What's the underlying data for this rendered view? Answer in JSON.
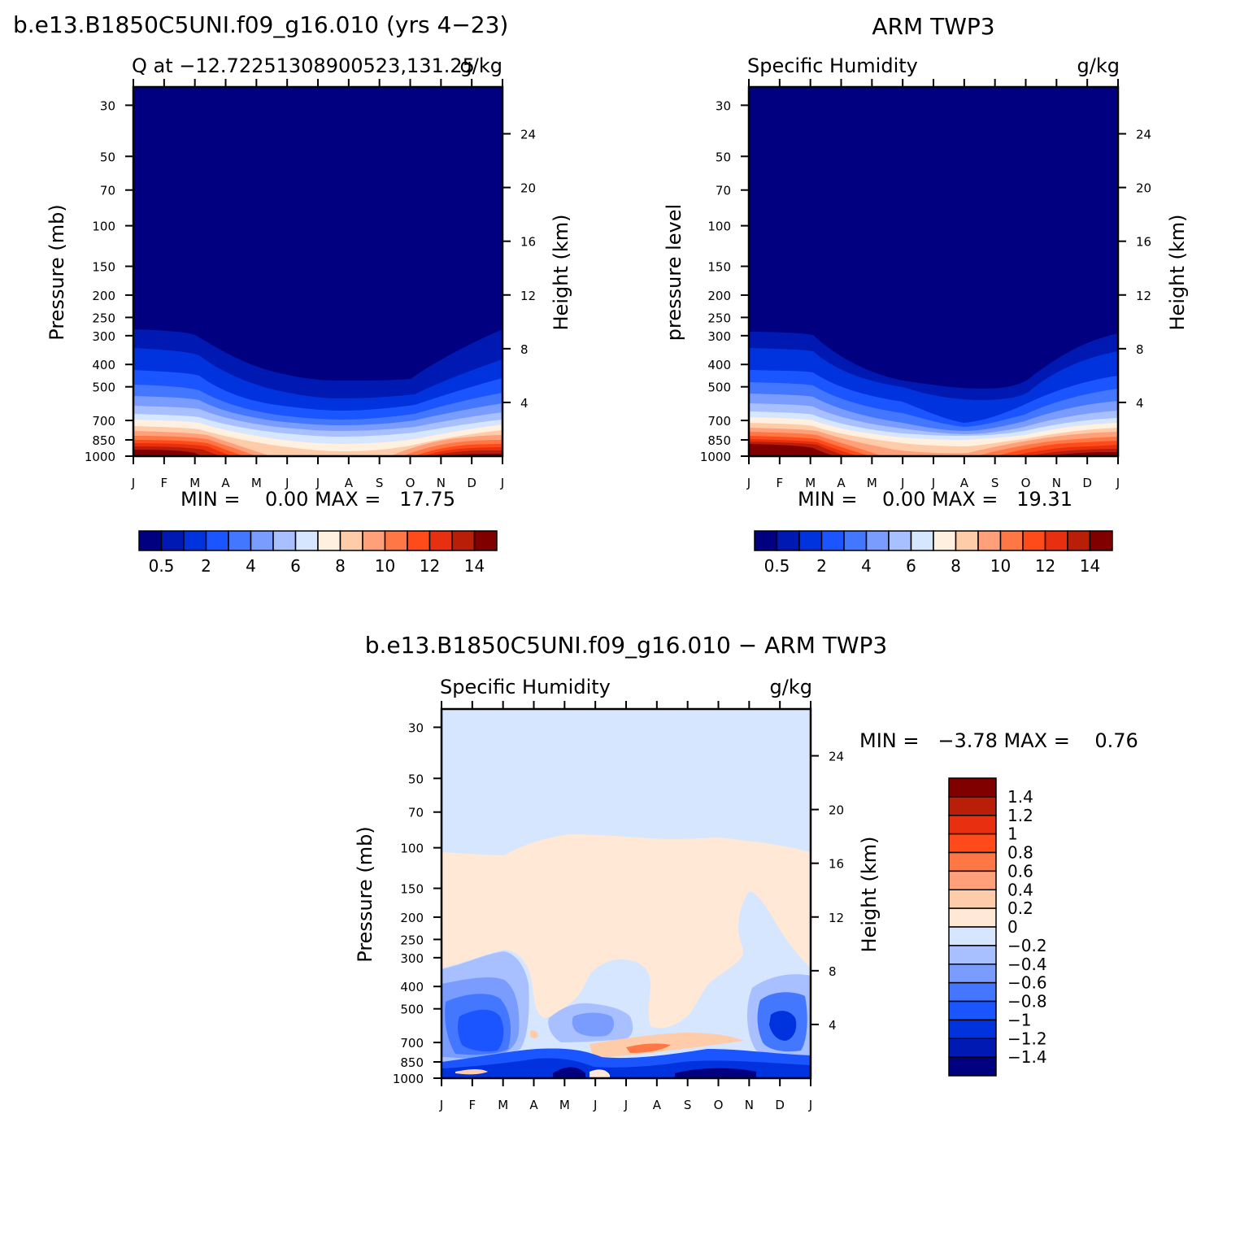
{
  "figure_title": "b.e13.B1850C5UNI.f09_g16.010 (yrs 4−23)",
  "panels": {
    "model": {
      "title": "",
      "left_title": "Q at −12.72251308900523,131.25",
      "right_title": "g/kg",
      "ylabel_left": "Pressure (mb)",
      "ylabel_right": "Height (km)",
      "minmax": "MIN =    0.00 MAX =   17.75"
    },
    "obs": {
      "title": "ARM TWP3",
      "left_title": "Specific Humidity",
      "right_title": "g/kg",
      "ylabel_left": "pressure level",
      "ylabel_right": "Height (km)",
      "minmax": "MIN =    0.00 MAX =   19.31"
    },
    "diff": {
      "title": "b.e13.B1850C5UNI.f09_g16.010 − ARM TWP3",
      "left_title": "Specific Humidity",
      "right_title": "g/kg",
      "ylabel_left": "Pressure (mb)",
      "ylabel_right": "Height (km)",
      "minmax": "MIN =   −3.78 MAX =    0.76"
    }
  },
  "chart_data": [
    {
      "type": "heatmap",
      "name": "model",
      "x_categories": [
        "J",
        "F",
        "M",
        "A",
        "M",
        "J",
        "J",
        "A",
        "S",
        "O",
        "N",
        "D",
        "J"
      ],
      "y_pressure_ticks": [
        30,
        50,
        70,
        100,
        150,
        200,
        250,
        300,
        400,
        500,
        700,
        850,
        1000
      ],
      "y_height_ticks": [
        4,
        8,
        12,
        16,
        20,
        24
      ],
      "ylim_mb": [
        25,
        1000
      ],
      "levels": [
        0.5,
        1,
        2,
        3,
        4,
        5,
        6,
        7,
        8,
        9,
        10,
        11,
        12,
        13,
        14
      ],
      "colorbar_labels": [
        "0.5",
        "2",
        "4",
        "6",
        "8",
        "10",
        "12",
        "14"
      ],
      "colors": [
        "#000080",
        "#0019b3",
        "#0033dd",
        "#1a55ff",
        "#4477ff",
        "#7a9cff",
        "#a8c0ff",
        "#d6e6ff",
        "#fff0e0",
        "#ffccaa",
        "#ffa07a",
        "#ff7744",
        "#ff4a1a",
        "#e83010",
        "#b81e08",
        "#800000"
      ],
      "min": 0.0,
      "max": 17.75
    },
    {
      "type": "heatmap",
      "name": "obs",
      "x_categories": [
        "J",
        "F",
        "M",
        "A",
        "M",
        "J",
        "J",
        "A",
        "S",
        "O",
        "N",
        "D",
        "J"
      ],
      "y_pressure_ticks": [
        30,
        50,
        70,
        100,
        150,
        200,
        250,
        300,
        400,
        500,
        700,
        850,
        1000
      ],
      "y_height_ticks": [
        4,
        8,
        12,
        16,
        20,
        24
      ],
      "ylim_mb": [
        25,
        1000
      ],
      "levels": [
        0.5,
        1,
        2,
        3,
        4,
        5,
        6,
        7,
        8,
        9,
        10,
        11,
        12,
        13,
        14
      ],
      "colorbar_labels": [
        "0.5",
        "2",
        "4",
        "6",
        "8",
        "10",
        "12",
        "14"
      ],
      "colors": [
        "#000080",
        "#0019b3",
        "#0033dd",
        "#1a55ff",
        "#4477ff",
        "#7a9cff",
        "#a8c0ff",
        "#d6e6ff",
        "#fff0e0",
        "#ffccaa",
        "#ffa07a",
        "#ff7744",
        "#ff4a1a",
        "#e83010",
        "#b81e08",
        "#800000"
      ],
      "min": 0.0,
      "max": 19.31
    },
    {
      "type": "heatmap",
      "name": "diff",
      "x_categories": [
        "J",
        "F",
        "M",
        "A",
        "M",
        "J",
        "J",
        "A",
        "S",
        "O",
        "N",
        "D",
        "J"
      ],
      "y_pressure_ticks": [
        30,
        50,
        70,
        100,
        150,
        200,
        250,
        300,
        400,
        500,
        700,
        850,
        1000
      ],
      "y_height_ticks": [
        4,
        8,
        12,
        16,
        20,
        24
      ],
      "ylim_mb": [
        25,
        1000
      ],
      "levels": [
        -1.4,
        -1.2,
        -1,
        -0.8,
        -0.6,
        -0.4,
        -0.2,
        0,
        0.2,
        0.4,
        0.6,
        0.8,
        1,
        1.2,
        1.4
      ],
      "colorbar_labels": [
        "1.4",
        "1.2",
        "1",
        "0.8",
        "0.6",
        "0.4",
        "0.2",
        "0",
        "−0.2",
        "−0.4",
        "−0.6",
        "−0.8",
        "−1",
        "−1.2",
        "−1.4"
      ],
      "colors": [
        "#000080",
        "#0019b3",
        "#0033dd",
        "#1a55ff",
        "#4477ff",
        "#7a9cff",
        "#a8c0ff",
        "#d6e6ff",
        "#ffe8d6",
        "#ffccaa",
        "#ffa07a",
        "#ff7744",
        "#ff4a1a",
        "#e83010",
        "#b81e08",
        "#800000"
      ],
      "min": -3.78,
      "max": 0.76
    }
  ]
}
